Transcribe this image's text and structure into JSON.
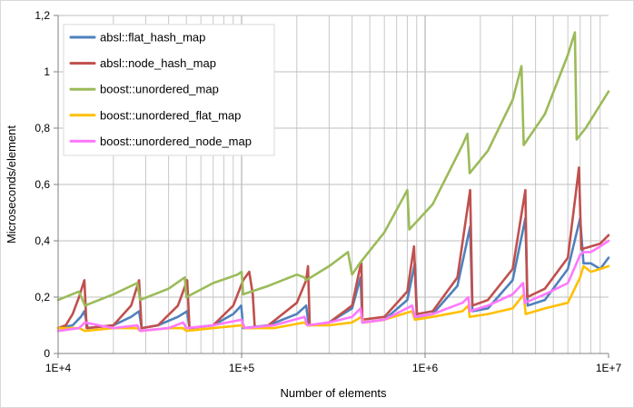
{
  "chart_data": {
    "type": "line",
    "title": "",
    "xlabel": "Number of elements",
    "ylabel": "Microseconds/element",
    "x_scale": "log",
    "xlim": [
      10000,
      10000000
    ],
    "ylim": [
      0,
      1.2
    ],
    "grid": true,
    "legend_position": "top-left",
    "x_ticks": [
      "1E+4",
      "1E+5",
      "1E+6",
      "1E+7"
    ],
    "y_ticks": [
      "0",
      "0,2",
      "0,4",
      "0,6",
      "0,8",
      "1",
      "1,2"
    ],
    "y_tick_values": [
      0,
      0.2,
      0.4,
      0.6,
      0.8,
      1.0,
      1.2
    ],
    "series": [
      {
        "name": "absl::flat_hash_map",
        "color": "#4f81bd",
        "x": [
          10000,
          12000,
          13300,
          13900,
          14500,
          20000,
          25000,
          27600,
          28500,
          35000,
          45000,
          50500,
          52000,
          70000,
          90000,
          99500,
          102000,
          140000,
          200000,
          225000,
          232000,
          300000,
          400000,
          445000,
          455000,
          600000,
          800000,
          880000,
          905000,
          1100000,
          1500000,
          1760000,
          1810000,
          2200000,
          3000000,
          3520000,
          3620000,
          4500000,
          6000000,
          7000000,
          7300000,
          8000000,
          9000000,
          10000000
        ],
        "y": [
          0.09,
          0.1,
          0.13,
          0.15,
          0.09,
          0.1,
          0.13,
          0.15,
          0.09,
          0.1,
          0.13,
          0.15,
          0.09,
          0.1,
          0.14,
          0.17,
          0.09,
          0.1,
          0.14,
          0.17,
          0.1,
          0.11,
          0.16,
          0.27,
          0.11,
          0.12,
          0.19,
          0.32,
          0.13,
          0.14,
          0.24,
          0.45,
          0.15,
          0.16,
          0.26,
          0.48,
          0.17,
          0.19,
          0.3,
          0.48,
          0.32,
          0.32,
          0.3,
          0.34
        ]
      },
      {
        "name": "absl::node_hash_map",
        "color": "#c0504d",
        "x": [
          10000,
          11000,
          12000,
          13000,
          13900,
          14300,
          20000,
          25000,
          27600,
          28500,
          35000,
          45000,
          50500,
          52000,
          70000,
          90000,
          102000,
          110000,
          115000,
          118000,
          140000,
          200000,
          225000,
          230000,
          235000,
          300000,
          400000,
          440000,
          450000,
          455000,
          600000,
          800000,
          870000,
          900000,
          1100000,
          1500000,
          1760000,
          1810000,
          2200000,
          3000000,
          3520000,
          3600000,
          4500000,
          6000000,
          6900000,
          7100000,
          8000000,
          9000000,
          10000000
        ],
        "y": [
          0.09,
          0.1,
          0.14,
          0.2,
          0.26,
          0.09,
          0.1,
          0.17,
          0.26,
          0.09,
          0.1,
          0.17,
          0.26,
          0.09,
          0.1,
          0.17,
          0.26,
          0.29,
          0.21,
          0.09,
          0.1,
          0.18,
          0.26,
          0.31,
          0.1,
          0.11,
          0.17,
          0.3,
          0.32,
          0.12,
          0.13,
          0.22,
          0.38,
          0.14,
          0.15,
          0.27,
          0.58,
          0.17,
          0.19,
          0.3,
          0.58,
          0.2,
          0.23,
          0.34,
          0.66,
          0.37,
          0.38,
          0.39,
          0.42
        ]
      },
      {
        "name": "boost::unordered_map",
        "color": "#9bbb59",
        "x": [
          10000,
          13000,
          14000,
          20000,
          27000,
          28000,
          40000,
          49000,
          50000,
          70000,
          95000,
          100000,
          102000,
          140000,
          200000,
          220000,
          225000,
          300000,
          380000,
          400000,
          440000,
          600000,
          800000,
          820000,
          1100000,
          1600000,
          1700000,
          1750000,
          2200000,
          3000000,
          3350000,
          3450000,
          4500000,
          6000000,
          6550000,
          6700000,
          7500000,
          10000000
        ],
        "y": [
          0.19,
          0.22,
          0.17,
          0.21,
          0.25,
          0.19,
          0.23,
          0.27,
          0.2,
          0.25,
          0.28,
          0.29,
          0.21,
          0.24,
          0.28,
          0.27,
          0.26,
          0.31,
          0.36,
          0.28,
          0.32,
          0.43,
          0.58,
          0.44,
          0.53,
          0.74,
          0.78,
          0.64,
          0.72,
          0.9,
          1.02,
          0.74,
          0.85,
          1.06,
          1.14,
          0.76,
          0.8,
          0.93
        ]
      },
      {
        "name": "boost::unordered_flat_map",
        "color": "#ffc000",
        "x": [
          10000,
          13000,
          14000,
          20000,
          27000,
          28000,
          40000,
          48000,
          50000,
          70000,
          100000,
          104000,
          150000,
          220000,
          228000,
          300000,
          400000,
          450000,
          465000,
          600000,
          850000,
          880000,
          1100000,
          1600000,
          1720000,
          1750000,
          2200000,
          3000000,
          3450000,
          3530000,
          4500000,
          6000000,
          7000000,
          7300000,
          8000000,
          9000000,
          10000000
        ],
        "y": [
          0.09,
          0.09,
          0.08,
          0.09,
          0.09,
          0.08,
          0.09,
          0.09,
          0.08,
          0.09,
          0.1,
          0.09,
          0.09,
          0.11,
          0.1,
          0.1,
          0.11,
          0.13,
          0.11,
          0.12,
          0.15,
          0.12,
          0.13,
          0.15,
          0.17,
          0.13,
          0.14,
          0.16,
          0.21,
          0.14,
          0.16,
          0.18,
          0.27,
          0.31,
          0.29,
          0.3,
          0.31
        ]
      },
      {
        "name": "boost::unordered_node_map",
        "color": "#ff77ff",
        "x": [
          10000,
          13000,
          14000,
          20000,
          27000,
          28000,
          40000,
          48000,
          50000,
          70000,
          100000,
          104000,
          150000,
          220000,
          228000,
          300000,
          400000,
          445000,
          455000,
          600000,
          850000,
          880000,
          1100000,
          1600000,
          1720000,
          1750000,
          2200000,
          3000000,
          3420000,
          3500000,
          4500000,
          6000000,
          7000000,
          7300000,
          8000000,
          9000000,
          10000000
        ],
        "y": [
          0.08,
          0.09,
          0.11,
          0.09,
          0.1,
          0.08,
          0.09,
          0.11,
          0.09,
          0.1,
          0.12,
          0.09,
          0.1,
          0.13,
          0.1,
          0.11,
          0.13,
          0.16,
          0.11,
          0.12,
          0.17,
          0.13,
          0.14,
          0.18,
          0.2,
          0.15,
          0.17,
          0.21,
          0.25,
          0.18,
          0.21,
          0.25,
          0.35,
          0.36,
          0.36,
          0.38,
          0.4
        ]
      }
    ]
  }
}
